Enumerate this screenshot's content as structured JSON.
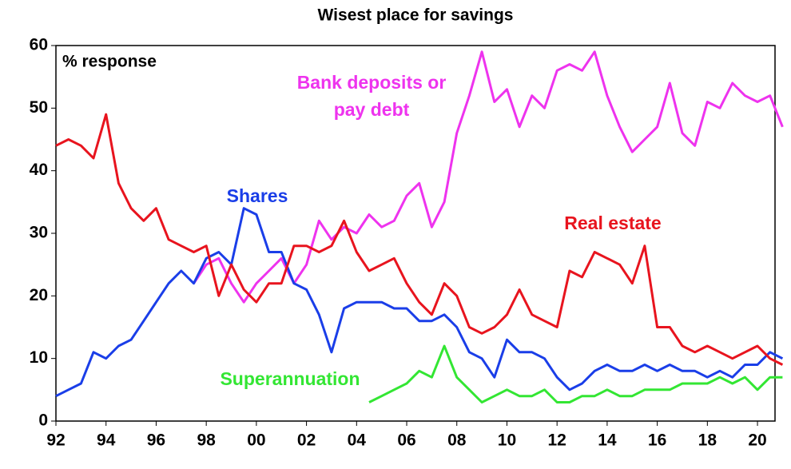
{
  "chart_data": {
    "type": "line",
    "title": "Wisest place for savings",
    "y_label": "% response",
    "x": [
      1992,
      1992.5,
      1993,
      1993.5,
      1994,
      1994.5,
      1995,
      1995.5,
      1996,
      1996.5,
      1997,
      1997.5,
      1998,
      1998.5,
      1999,
      1999.5,
      2000,
      2000.5,
      2001,
      2001.5,
      2002,
      2002.5,
      2003,
      2003.5,
      2004,
      2004.5,
      2005,
      2005.5,
      2006,
      2006.5,
      2007,
      2007.5,
      2008,
      2008.5,
      2009,
      2009.5,
      2010,
      2010.5,
      2011,
      2011.5,
      2012,
      2012.5,
      2013,
      2013.5,
      2014,
      2014.5,
      2015,
      2015.5,
      2016,
      2016.5,
      2017,
      2017.5,
      2018,
      2018.5,
      2019,
      2019.5,
      2020,
      2020.5,
      2021
    ],
    "series": [
      {
        "name": "Bank deposits or pay debt",
        "color": "#ee33ee",
        "values": [
          null,
          null,
          null,
          null,
          null,
          null,
          null,
          null,
          null,
          null,
          null,
          22,
          25,
          26,
          22,
          19,
          22,
          24,
          26,
          22,
          25,
          32,
          29,
          31,
          30,
          33,
          31,
          32,
          36,
          38,
          31,
          35,
          46,
          52,
          59,
          51,
          53,
          47,
          52,
          50,
          56,
          57,
          56,
          59,
          52,
          47,
          43,
          45,
          47,
          54,
          46,
          44,
          51,
          50,
          54,
          52,
          51,
          52,
          47
        ]
      },
      {
        "name": "Shares",
        "color": "#1a3ee8",
        "values": [
          4,
          5,
          6,
          11,
          10,
          12,
          13,
          16,
          19,
          22,
          24,
          22,
          26,
          27,
          25,
          34,
          33,
          27,
          27,
          22,
          21,
          17,
          11,
          18,
          19,
          19,
          19,
          18,
          18,
          16,
          16,
          17,
          15,
          11,
          10,
          7,
          13,
          11,
          11,
          10,
          7,
          5,
          6,
          8,
          9,
          8,
          8,
          9,
          8,
          9,
          8,
          8,
          7,
          8,
          7,
          9,
          9,
          11,
          10
        ]
      },
      {
        "name": "Real estate",
        "color": "#e8141e",
        "values": [
          44,
          45,
          44,
          42,
          49,
          38,
          34,
          32,
          34,
          29,
          28,
          27,
          28,
          20,
          25,
          21,
          19,
          22,
          22,
          28,
          28,
          27,
          28,
          32,
          27,
          24,
          25,
          26,
          22,
          19,
          17,
          22,
          20,
          15,
          14,
          15,
          17,
          21,
          17,
          16,
          15,
          24,
          23,
          27,
          26,
          25,
          22,
          28,
          15,
          15,
          12,
          11,
          12,
          11,
          10,
          11,
          12,
          10,
          9
        ]
      },
      {
        "name": "Superannuation",
        "color": "#33e633",
        "values": [
          null,
          null,
          null,
          null,
          null,
          null,
          null,
          null,
          null,
          null,
          null,
          null,
          null,
          null,
          null,
          null,
          null,
          null,
          null,
          null,
          null,
          null,
          null,
          null,
          null,
          3,
          4,
          5,
          6,
          8,
          7,
          12,
          7,
          5,
          3,
          4,
          5,
          4,
          4,
          5,
          3,
          3,
          4,
          4,
          5,
          4,
          4,
          5,
          5,
          5,
          6,
          6,
          6,
          7,
          6,
          7,
          5,
          7,
          7
        ]
      }
    ],
    "xlim": [
      1992,
      2020.7
    ],
    "xticks": [
      {
        "value": 1992,
        "label": "92"
      },
      {
        "value": 1994,
        "label": "94"
      },
      {
        "value": 1996,
        "label": "96"
      },
      {
        "value": 1998,
        "label": "98"
      },
      {
        "value": 2000,
        "label": "00"
      },
      {
        "value": 2002,
        "label": "02"
      },
      {
        "value": 2004,
        "label": "04"
      },
      {
        "value": 2006,
        "label": "06"
      },
      {
        "value": 2008,
        "label": "08"
      },
      {
        "value": 2010,
        "label": "10"
      },
      {
        "value": 2012,
        "label": "12"
      },
      {
        "value": 2014,
        "label": "14"
      },
      {
        "value": 2016,
        "label": "16"
      },
      {
        "value": 2018,
        "label": "18"
      },
      {
        "value": 2020,
        "label": "20"
      }
    ],
    "ylim": [
      0,
      60
    ],
    "yticks": [
      0,
      10,
      20,
      30,
      40,
      50,
      60
    ]
  }
}
